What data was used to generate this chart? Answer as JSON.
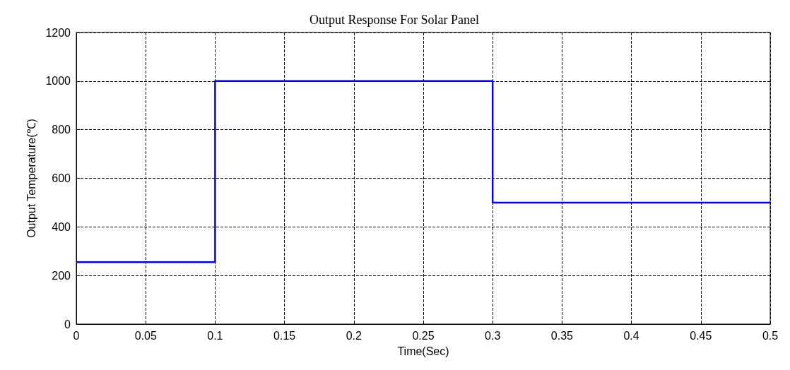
{
  "chart_data": {
    "type": "step",
    "title": "Output Response For Solar Panel",
    "xlabel": "Time(Sec)",
    "ylabel": "Output Temperature(℃)",
    "x": [
      0,
      0.1,
      0.3,
      0.5
    ],
    "series": [
      {
        "color": "#0000ff",
        "values": [
          255,
          1000,
          500,
          500
        ]
      }
    ],
    "xlim": [
      0,
      0.5
    ],
    "xticks": [
      0,
      0.05,
      0.1,
      0.15,
      0.2,
      0.25,
      0.3,
      0.35,
      0.4,
      0.45,
      0.5
    ],
    "ylim": [
      0,
      1200
    ],
    "yticks": [
      0,
      200,
      400,
      600,
      800,
      1000,
      1200
    ],
    "grid": true,
    "marker": "none",
    "line_style": "solid"
  }
}
